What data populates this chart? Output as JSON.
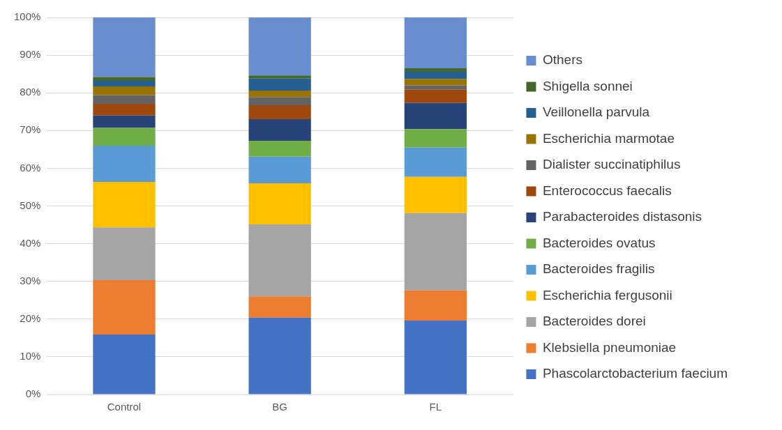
{
  "chart_data": {
    "type": "bar",
    "stacked": true,
    "categories": [
      "Control",
      "BG",
      "FL"
    ],
    "series": [
      {
        "name": "Phascolarctobacterium faecium",
        "color": "#4472c4",
        "values": [
          15.9,
          20.4,
          19.6
        ]
      },
      {
        "name": "Klebsiella pneumoniae",
        "color": "#ed7d31",
        "values": [
          14.4,
          5.6,
          8.0
        ]
      },
      {
        "name": "Bacteroides dorei",
        "color": "#a5a5a5",
        "values": [
          14.0,
          19.1,
          20.5
        ]
      },
      {
        "name": "Escherichia fergusonii",
        "color": "#ffc000",
        "values": [
          12.1,
          10.9,
          9.6
        ]
      },
      {
        "name": "Bacteroides fragilis",
        "color": "#5b9bd5",
        "values": [
          9.6,
          7.1,
          7.8
        ]
      },
      {
        "name": "Bacteroides ovatus",
        "color": "#70ad47",
        "values": [
          4.7,
          4.2,
          4.9
        ]
      },
      {
        "name": "Parabacteroides distasonis",
        "color": "#264478",
        "values": [
          3.3,
          5.7,
          6.9
        ]
      },
      {
        "name": "Enterococcus faecalis",
        "color": "#9e480e",
        "values": [
          3.1,
          3.7,
          3.5
        ]
      },
      {
        "name": "Dialister succinatiphilus",
        "color": "#636363",
        "values": [
          2.3,
          2.2,
          1.2
        ]
      },
      {
        "name": "Escherichia marmotae",
        "color": "#997300",
        "values": [
          2.3,
          1.7,
          1.7
        ]
      },
      {
        "name": "Veillonella parvula",
        "color": "#255e91",
        "values": [
          1.5,
          3.2,
          1.9
        ]
      },
      {
        "name": "Shigella sonnei",
        "color": "#43682b",
        "values": [
          1.0,
          0.8,
          0.9
        ]
      },
      {
        "name": "Others",
        "color": "#698ed0",
        "values": [
          15.8,
          15.4,
          13.5
        ]
      }
    ],
    "ylim": [
      0,
      100
    ],
    "yticks": [
      {
        "value": 0,
        "label": "0%"
      },
      {
        "value": 10,
        "label": "10%"
      },
      {
        "value": 20,
        "label": "20%"
      },
      {
        "value": 30,
        "label": "30%"
      },
      {
        "value": 40,
        "label": "40%"
      },
      {
        "value": 50,
        "label": "50%"
      },
      {
        "value": 60,
        "label": "60%"
      },
      {
        "value": 70,
        "label": "70%"
      },
      {
        "value": 80,
        "label": "80%"
      },
      {
        "value": 90,
        "label": "90%"
      },
      {
        "value": 100,
        "label": "100%"
      }
    ],
    "grid": "y",
    "legend": "right"
  }
}
